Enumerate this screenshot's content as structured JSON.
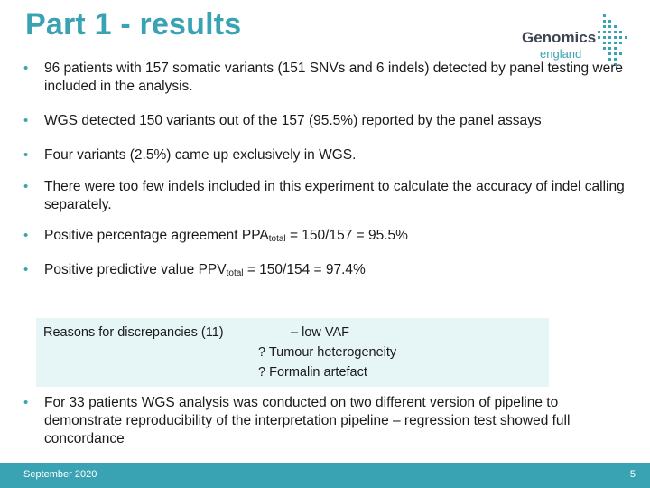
{
  "slide": {
    "title": "Part 1 - results",
    "logo": {
      "word": "Genomics",
      "sub": "england"
    }
  },
  "bullets": [
    {
      "text": "96 patients with 157 somatic variants (151 SNVs and 6 indels) detected by panel testing were included in the analysis."
    },
    {
      "text": "WGS detected 150 variants out of the 157 (95.5%) reported by the panel assays"
    },
    {
      "text": "Four variants (2.5%) came up exclusively in WGS."
    },
    {
      "text": "There were too few indels included in this experiment to calculate the accuracy of indel calling separately."
    },
    {
      "pre": "Positive percentage agreement PPA",
      "sub": "total",
      "post": " = 150/157 = 95.5%"
    },
    {
      "pre": "Positive predictive value PPV",
      "sub": "total",
      "post": " = 150/154 = 97.4%"
    },
    {
      "text": "For 33 patients WGS analysis was conducted on two different version of pipeline to demonstrate reproducibility of the  interpretation pipeline – regression test showed full concordance"
    }
  ],
  "reasons": {
    "lead": "Reasons for discrepancies (11)",
    "items": [
      "– low VAF",
      "? Tumour heterogeneity",
      "? Formalin artefact"
    ]
  },
  "footer": {
    "date": "September 2020",
    "page": "5"
  },
  "colors": {
    "accent": "#3aa3b3",
    "box": "#e6f6f7",
    "logo_text": "#3d4550"
  },
  "icons": {
    "logo": "genomics-england-logo",
    "bullet": "bullet-dot"
  }
}
